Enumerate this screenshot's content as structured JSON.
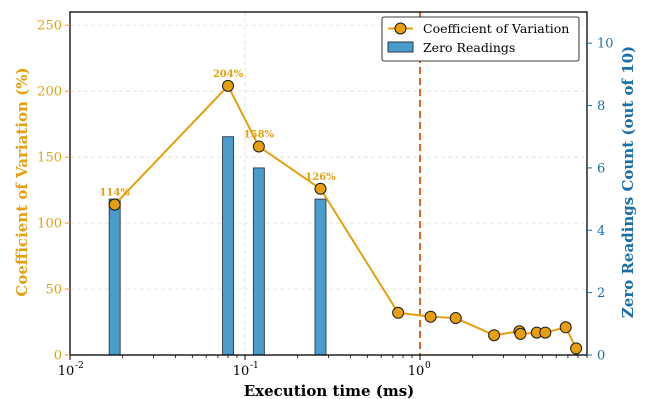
{
  "colors": {
    "cv": "#e6a00f",
    "zero": "#4a9ccb",
    "zero_edge": "#2b3a4a",
    "right_axis": "#1a6fa8",
    "threshold": "#d86a2a",
    "marker_edge": "#1a1a1a"
  },
  "chart_data": {
    "type": "line+bar",
    "x_scale": "log",
    "xlabel": "Execution time (ms)",
    "xlim": [
      0.01,
      9
    ],
    "x_ticks": [
      {
        "value": 0.01,
        "label": "10",
        "exp": "-2"
      },
      {
        "value": 0.1,
        "label": "10",
        "exp": "-1"
      },
      {
        "value": 1,
        "label": "10",
        "exp": "0"
      }
    ],
    "y_left": {
      "label": "Coefficient of Variation (%)",
      "lim": [
        0,
        260
      ],
      "ticks": [
        0,
        50,
        100,
        150,
        200,
        250
      ]
    },
    "y_right": {
      "label": "Zero Readings Count (out of 10)",
      "lim": [
        0,
        11
      ],
      "ticks": [
        0,
        2,
        4,
        6,
        8,
        10
      ]
    },
    "threshold_x": 1,
    "legend": {
      "placement": "top-right",
      "entries": [
        "Coefficient of Variation",
        "Zero Readings"
      ]
    },
    "series": [
      {
        "name": "Coefficient of Variation",
        "type": "line",
        "axis": "left",
        "x": [
          0.018,
          0.08,
          0.12,
          0.27,
          0.75,
          1.15,
          1.6,
          2.65,
          3.7,
          3.75,
          4.65,
          5.2,
          6.8,
          7.8
        ],
        "y": [
          114,
          204,
          158,
          126,
          32,
          29,
          28,
          15,
          18,
          16,
          17,
          17,
          21,
          5
        ]
      },
      {
        "name": "Zero Readings",
        "type": "bar",
        "axis": "right",
        "x": [
          0.018,
          0.08,
          0.12,
          0.27
        ],
        "y": [
          5,
          7,
          6,
          5
        ]
      }
    ],
    "annotations": [
      {
        "x": 0.018,
        "y": 114,
        "text": "114%"
      },
      {
        "x": 0.08,
        "y": 204,
        "text": "204%"
      },
      {
        "x": 0.12,
        "y": 158,
        "text": "158%"
      },
      {
        "x": 0.27,
        "y": 126,
        "text": "126%"
      }
    ]
  }
}
